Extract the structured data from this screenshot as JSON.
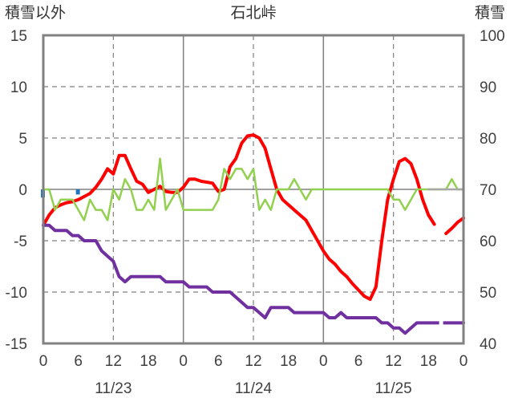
{
  "chart_data": {
    "type": "line",
    "title": "石北峠",
    "left_axis_label": "積雪以外",
    "right_axis_label": "積雪",
    "y_left": {
      "min": -15,
      "max": 15,
      "ticks": [
        15,
        10,
        5,
        0,
        -5,
        -10,
        -15
      ]
    },
    "y_right": {
      "min": 40,
      "max": 100,
      "ticks": [
        100,
        90,
        80,
        70,
        60,
        50,
        40
      ]
    },
    "x": {
      "min": 0,
      "max": 72,
      "unit": "hours",
      "ticks": [
        0,
        6,
        12,
        18,
        24,
        30,
        36,
        42,
        48,
        54,
        60,
        66,
        72
      ],
      "tick_labels": [
        "0",
        "6",
        "12",
        "18",
        "0",
        "6",
        "12",
        "18",
        "0",
        "6",
        "12",
        "18",
        "0"
      ],
      "day_boundaries": [
        24,
        48
      ],
      "dashed_lines": [
        12,
        36,
        60
      ],
      "dates": [
        {
          "label": "11/23",
          "center": 12
        },
        {
          "label": "11/24",
          "center": 36
        },
        {
          "label": "11/25",
          "center": 60
        }
      ]
    },
    "grid": true,
    "series": [
      {
        "axis": "left",
        "color": "#1f77c4",
        "kind": "bar",
        "points": [
          [
            0,
            -0.8
          ],
          [
            6,
            -0.5
          ]
        ]
      },
      {
        "axis": "left",
        "color": "#ff0000",
        "kind": "line",
        "segments": [
          [
            [
              0,
              -3.5
            ],
            [
              1,
              -2.5
            ],
            [
              2,
              -1.8
            ],
            [
              3,
              -1.5
            ],
            [
              4,
              -1.3
            ],
            [
              5,
              -1.2
            ],
            [
              6,
              -1.0
            ],
            [
              7,
              -0.7
            ],
            [
              8,
              -0.4
            ],
            [
              9,
              0.2
            ],
            [
              10,
              1.0
            ],
            [
              11,
              2.0
            ],
            [
              12,
              1.5
            ],
            [
              13,
              3.3
            ],
            [
              14,
              3.3
            ],
            [
              15,
              2.0
            ],
            [
              16,
              0.8
            ],
            [
              17,
              0.5
            ],
            [
              18,
              -0.3
            ],
            [
              19,
              0.0
            ],
            [
              20,
              0.3
            ],
            [
              21,
              -0.2
            ],
            [
              22,
              -0.3
            ],
            [
              23,
              -0.3
            ],
            [
              24,
              0.2
            ],
            [
              25,
              1.0
            ],
            [
              26,
              1.0
            ],
            [
              27,
              0.8
            ],
            [
              28,
              0.7
            ],
            [
              29,
              0.6
            ],
            [
              30,
              -0.2
            ],
            [
              31,
              0.0
            ],
            [
              32,
              2.2
            ],
            [
              33,
              3.0
            ],
            [
              34,
              4.5
            ],
            [
              35,
              5.2
            ],
            [
              36,
              5.3
            ],
            [
              37,
              5.0
            ],
            [
              38,
              4.0
            ],
            [
              39,
              2.0
            ],
            [
              40,
              0.0
            ],
            [
              41,
              -1.0
            ],
            [
              42,
              -1.5
            ],
            [
              43,
              -2.0
            ],
            [
              44,
              -2.5
            ],
            [
              45,
              -3.0
            ],
            [
              46,
              -4.0
            ],
            [
              47,
              -5.0
            ],
            [
              48,
              -6.0
            ],
            [
              49,
              -6.8
            ],
            [
              50,
              -7.3
            ],
            [
              51,
              -8.0
            ],
            [
              52,
              -8.5
            ],
            [
              53,
              -9.2
            ],
            [
              54,
              -9.8
            ],
            [
              55,
              -10.4
            ],
            [
              56,
              -10.7
            ],
            [
              57,
              -9.5
            ],
            [
              58,
              -5.0
            ],
            [
              59,
              -1.0
            ],
            [
              60,
              1.0
            ],
            [
              61,
              2.7
            ],
            [
              62,
              3.0
            ],
            [
              63,
              2.5
            ],
            [
              64,
              1.0
            ],
            [
              65,
              -1.0
            ],
            [
              66,
              -2.5
            ],
            [
              67,
              -3.4
            ]
          ],
          [
            [
              69,
              -4.3
            ],
            [
              70,
              -3.8
            ],
            [
              71,
              -3.2
            ],
            [
              72,
              -2.8
            ]
          ]
        ]
      },
      {
        "axis": "left",
        "color": "#92d050",
        "kind": "line",
        "segments": [
          [
            [
              0,
              0.0
            ],
            [
              1,
              0.0
            ],
            [
              2,
              -2.0
            ],
            [
              3,
              -1.0
            ],
            [
              4,
              -1.0
            ],
            [
              5,
              -1.0
            ],
            [
              6,
              -2.0
            ],
            [
              7,
              -3.0
            ],
            [
              8,
              -1.0
            ],
            [
              9,
              -2.0
            ],
            [
              10,
              -2.0
            ],
            [
              11,
              -3.0
            ],
            [
              12,
              0.0
            ],
            [
              13,
              -1.0
            ],
            [
              14,
              1.0
            ],
            [
              15,
              0.0
            ],
            [
              16,
              -2.0
            ],
            [
              17,
              -2.0
            ],
            [
              18,
              -1.0
            ],
            [
              19,
              -2.0
            ],
            [
              20,
              3.0
            ],
            [
              21,
              -2.0
            ],
            [
              22,
              -1.0
            ],
            [
              23,
              0.0
            ],
            [
              24,
              -2.0
            ],
            [
              25,
              -2.0
            ],
            [
              26,
              -2.0
            ],
            [
              27,
              -2.0
            ],
            [
              28,
              -2.0
            ],
            [
              29,
              -2.0
            ],
            [
              30,
              -1.0
            ],
            [
              31,
              2.0
            ],
            [
              32,
              1.0
            ],
            [
              33,
              2.0
            ],
            [
              34,
              2.0
            ],
            [
              35,
              1.0
            ],
            [
              36,
              2.0
            ],
            [
              37,
              -2.0
            ],
            [
              38,
              -1.0
            ],
            [
              39,
              -2.0
            ],
            [
              40,
              0.0
            ],
            [
              41,
              0.0
            ],
            [
              42,
              0.0
            ],
            [
              43,
              1.0
            ],
            [
              44,
              0.0
            ],
            [
              45,
              -1.0
            ],
            [
              46,
              0.0
            ],
            [
              47,
              0.0
            ],
            [
              48,
              0.0
            ],
            [
              49,
              0.0
            ],
            [
              50,
              0.0
            ],
            [
              51,
              0.0
            ],
            [
              52,
              0.0
            ],
            [
              53,
              0.0
            ],
            [
              54,
              0.0
            ],
            [
              55,
              0.0
            ],
            [
              56,
              0.0
            ],
            [
              57,
              0.0
            ],
            [
              58,
              0.0
            ],
            [
              59,
              0.0
            ],
            [
              60,
              -1.0
            ],
            [
              61,
              -1.0
            ],
            [
              62,
              -2.0
            ],
            [
              63,
              -1.0
            ],
            [
              64,
              0.0
            ],
            [
              65,
              0.0
            ],
            [
              66,
              0.0
            ],
            [
              67,
              0.0
            ],
            [
              68,
              0.0
            ],
            [
              69,
              0.0
            ],
            [
              70,
              1.0
            ],
            [
              71,
              0.0
            ],
            [
              72,
              0.0
            ]
          ]
        ]
      },
      {
        "axis": "right",
        "color": "#7030a0",
        "kind": "line",
        "segments": [
          [
            [
              0,
              63
            ],
            [
              1,
              63
            ],
            [
              2,
              62
            ],
            [
              3,
              62
            ],
            [
              4,
              62
            ],
            [
              5,
              61
            ],
            [
              6,
              61
            ],
            [
              7,
              60
            ],
            [
              8,
              60
            ],
            [
              9,
              60
            ],
            [
              10,
              58
            ],
            [
              11,
              57
            ],
            [
              12,
              56
            ],
            [
              13,
              53
            ],
            [
              14,
              52
            ],
            [
              15,
              53
            ],
            [
              16,
              53
            ],
            [
              17,
              53
            ],
            [
              18,
              53
            ],
            [
              19,
              53
            ],
            [
              20,
              53
            ],
            [
              21,
              52
            ],
            [
              22,
              52
            ],
            [
              23,
              52
            ],
            [
              24,
              52
            ],
            [
              25,
              51
            ],
            [
              26,
              51
            ],
            [
              27,
              51
            ],
            [
              28,
              51
            ],
            [
              29,
              50
            ],
            [
              30,
              50
            ],
            [
              31,
              50
            ],
            [
              32,
              50
            ],
            [
              33,
              49
            ],
            [
              34,
              48
            ],
            [
              35,
              47
            ],
            [
              36,
              47
            ],
            [
              37,
              46
            ],
            [
              38,
              45
            ],
            [
              39,
              47
            ],
            [
              40,
              47
            ],
            [
              41,
              47
            ],
            [
              42,
              47
            ],
            [
              43,
              46
            ],
            [
              44,
              46
            ],
            [
              45,
              46
            ],
            [
              46,
              46
            ],
            [
              47,
              46
            ],
            [
              48,
              46
            ],
            [
              49,
              45
            ],
            [
              50,
              45
            ],
            [
              51,
              46
            ],
            [
              52,
              45
            ],
            [
              53,
              45
            ],
            [
              54,
              45
            ],
            [
              55,
              45
            ],
            [
              56,
              45
            ],
            [
              57,
              45
            ],
            [
              58,
              44
            ],
            [
              59,
              44
            ],
            [
              60,
              43
            ],
            [
              61,
              43
            ],
            [
              62,
              42
            ],
            [
              63,
              43
            ],
            [
              64,
              44
            ],
            [
              65,
              44
            ],
            [
              66,
              44
            ],
            [
              67,
              44
            ]
          ],
          [
            [
              69,
              44
            ],
            [
              70,
              44
            ],
            [
              71,
              44
            ],
            [
              72,
              44
            ]
          ]
        ],
        "dashed_tail": [
          [
            67,
            44
          ],
          [
            69,
            44
          ]
        ]
      },
      {
        "axis": "left",
        "color": "#a6a6a6",
        "kind": "line",
        "segments": [
          [
            [
              66,
              0.0
            ],
            [
              72,
              0.0
            ]
          ]
        ]
      }
    ]
  }
}
